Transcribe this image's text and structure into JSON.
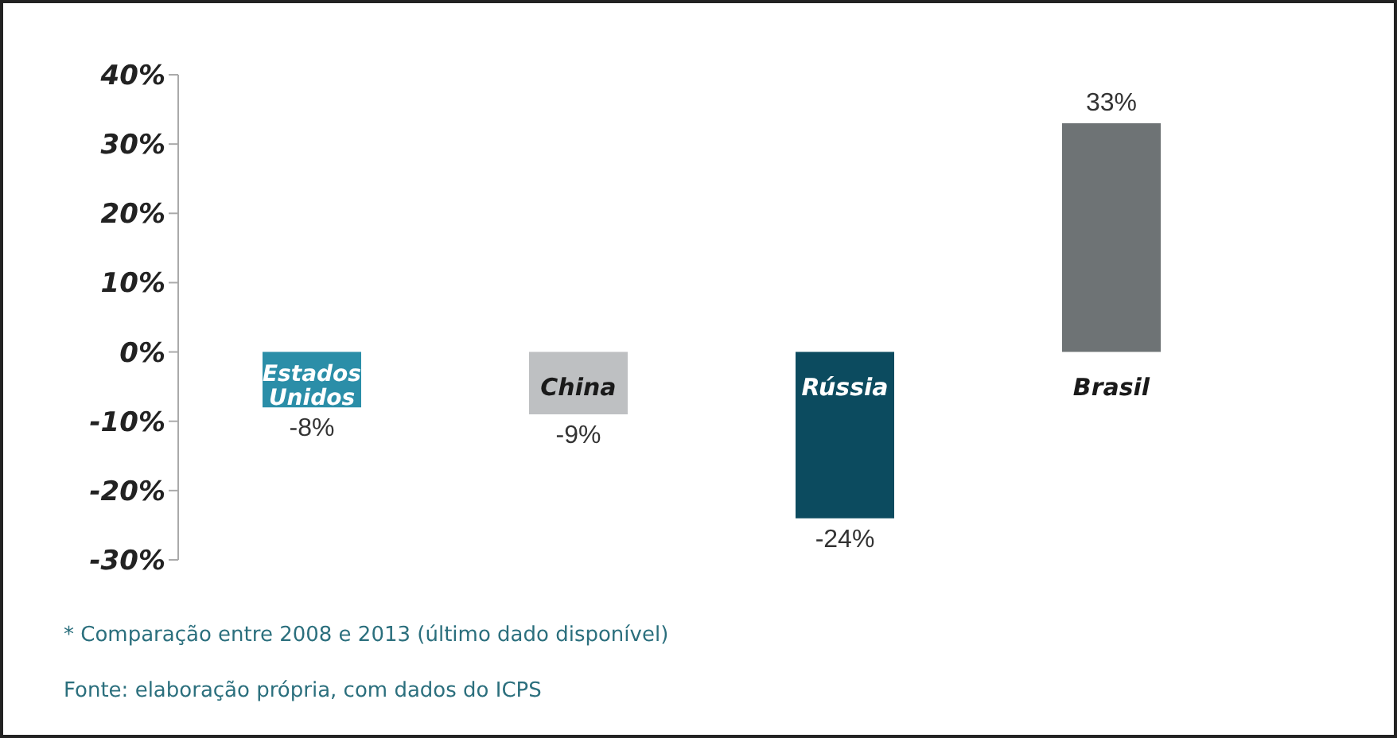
{
  "chart_data": {
    "type": "bar",
    "categories": [
      "Estados Unidos",
      "China",
      "Rússia",
      "Brasil"
    ],
    "values": [
      -8,
      -9,
      -24,
      33
    ],
    "colors": [
      "#2b8ea8",
      "#bec0c2",
      "#0c4b5f",
      "#6e7375"
    ],
    "value_labels": [
      "-8%",
      "-9%",
      "-24%",
      "33%"
    ],
    "ylim": [
      -30,
      40
    ],
    "yticks": [
      {
        "value": -30,
        "label": "-30%"
      },
      {
        "value": -20,
        "label": "-20%"
      },
      {
        "value": -10,
        "label": "-10%"
      },
      {
        "value": 0,
        "label": "0%"
      },
      {
        "value": 10,
        "label": "10%"
      },
      {
        "value": 20,
        "label": "20%"
      },
      {
        "value": 30,
        "label": "30%"
      },
      {
        "value": 40,
        "label": "40%"
      }
    ],
    "grid": false,
    "legend": false,
    "annotations": [
      "* Comparação entre 2008 e 2013 (último dado disponível)",
      "Fonte: elaboração própria, com dados do ICPS"
    ]
  }
}
